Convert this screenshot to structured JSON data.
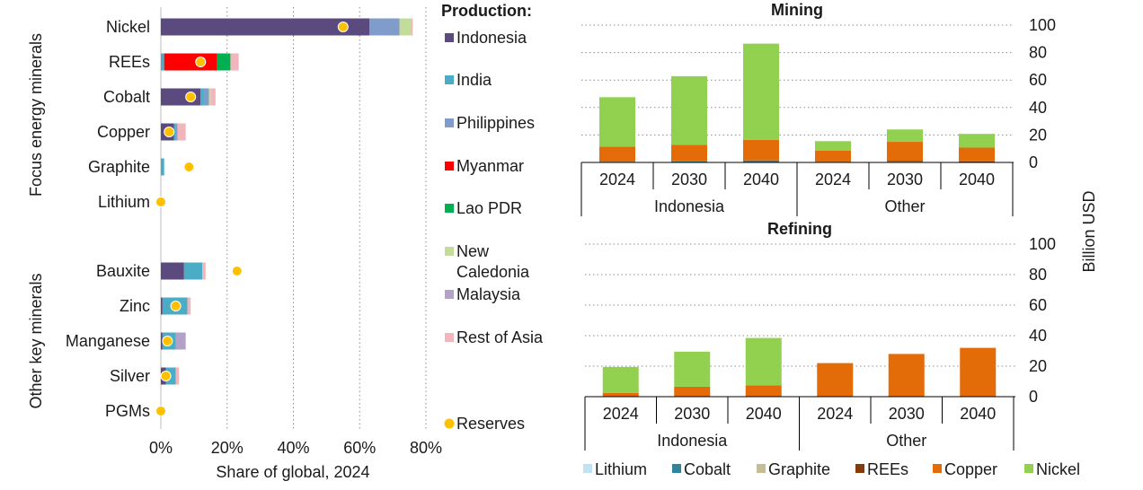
{
  "colors": {
    "Indonesia": "#5b4a7e",
    "India": "#4bacc6",
    "Philippines": "#7f9ccb",
    "Myanmar": "#ff0000",
    "Lao PDR": "#00b050",
    "New Caledonia": "#c4dc9a",
    "Malaysia": "#b3a2c7",
    "Rest of Asia": "#f0b6bc",
    "Reserves": "#ffc000",
    "Lithium": "#bfe3f2",
    "Cobalt": "#31849b",
    "Graphite": "#c4bd97",
    "REEs": "#843c0c",
    "Copper": "#e36c09",
    "Nickel": "#92d050"
  },
  "chart_data": [
    {
      "type": "bar",
      "orientation": "horizontal",
      "stacked": true,
      "group_labels": [
        "Focus energy minerals",
        "Other key minerals"
      ],
      "groups": [
        {
          "label": "Focus energy minerals",
          "categories": [
            "Nickel",
            "REEs",
            "Cobalt",
            "Copper",
            "Graphite",
            "Lithium"
          ]
        },
        {
          "label": "Other key minerals",
          "categories": [
            "Bauxite",
            "Zinc",
            "Manganese",
            "Silver",
            "PGMs"
          ]
        }
      ],
      "categories": [
        "Nickel",
        "REEs",
        "Cobalt",
        "Copper",
        "Graphite",
        "Lithium",
        "Bauxite",
        "Zinc",
        "Manganese",
        "Silver",
        "PGMs"
      ],
      "legend_title": "Production:",
      "series": [
        {
          "name": "Indonesia",
          "values": [
            63,
            0,
            12,
            4,
            0,
            0,
            7,
            0.5,
            0.5,
            1.5,
            0
          ]
        },
        {
          "name": "India",
          "values": [
            0,
            1,
            1,
            0.5,
            1,
            0,
            5.5,
            7.5,
            4,
            3,
            0
          ]
        },
        {
          "name": "Philippines",
          "values": [
            9,
            0,
            1.5,
            0.5,
            0,
            0,
            0,
            0,
            0,
            0,
            0
          ]
        },
        {
          "name": "Myanmar",
          "values": [
            0,
            16,
            0,
            0,
            0,
            0,
            0,
            0,
            0,
            0,
            0
          ]
        },
        {
          "name": "Lao PDR",
          "values": [
            0,
            4,
            0,
            0,
            0,
            0,
            0,
            0,
            0,
            0,
            0
          ]
        },
        {
          "name": "New Caledonia",
          "values": [
            3.5,
            0,
            0.5,
            0,
            0,
            0,
            0,
            0,
            0,
            0,
            0
          ]
        },
        {
          "name": "Malaysia",
          "values": [
            0,
            0,
            0,
            0,
            0,
            0,
            0,
            0,
            3,
            0,
            0
          ]
        },
        {
          "name": "Rest of Asia",
          "values": [
            0.5,
            2.5,
            1.5,
            2.5,
            0,
            0,
            1,
            1,
            0,
            1,
            0
          ]
        }
      ],
      "markers": {
        "name": "Reserves",
        "values": [
          55,
          12,
          9,
          2.5,
          8.5,
          0,
          23,
          4.5,
          2,
          1.5,
          0
        ]
      },
      "xlabel": "Share of global, 2024",
      "xlim": [
        0,
        80
      ],
      "xticks": [
        "0%",
        "20%",
        "40%",
        "60%",
        "80%"
      ],
      "grid": "vertical dotted",
      "legend_position": "right"
    },
    {
      "type": "bar",
      "stacked": true,
      "title": "Mining",
      "categories": [
        "2024",
        "2030",
        "2040",
        "2024",
        "2030",
        "2040"
      ],
      "groups": [
        "Indonesia",
        "Other"
      ],
      "series": [
        {
          "name": "Lithium",
          "values": [
            0,
            0,
            0,
            0,
            0,
            0
          ]
        },
        {
          "name": "Cobalt",
          "values": [
            0.5,
            0.8,
            1.5,
            0,
            0,
            0
          ]
        },
        {
          "name": "Graphite",
          "values": [
            0,
            0,
            0,
            0,
            0.5,
            0.3
          ]
        },
        {
          "name": "REEs",
          "values": [
            0,
            0,
            0,
            0.5,
            0.5,
            0.5
          ]
        },
        {
          "name": "Copper",
          "values": [
            11,
            12,
            15,
            8,
            14,
            10
          ]
        },
        {
          "name": "Nickel",
          "values": [
            36,
            50,
            70,
            7,
            9,
            10
          ]
        }
      ],
      "ylim": [
        0,
        100
      ],
      "yticks": [
        "0",
        "20",
        "40",
        "60",
        "80",
        "100"
      ],
      "grid": "horizontal dotted"
    },
    {
      "type": "bar",
      "stacked": true,
      "title": "Refining",
      "categories": [
        "2024",
        "2030",
        "2040",
        "2024",
        "2030",
        "2040"
      ],
      "groups": [
        "Indonesia",
        "Other"
      ],
      "series": [
        {
          "name": "Lithium",
          "values": [
            0,
            0,
            0,
            0,
            0,
            0
          ]
        },
        {
          "name": "Cobalt",
          "values": [
            0,
            0,
            0,
            0,
            0,
            0
          ]
        },
        {
          "name": "Graphite",
          "values": [
            0,
            0,
            0,
            0,
            0,
            0
          ]
        },
        {
          "name": "REEs",
          "values": [
            0.5,
            0.5,
            0.5,
            0,
            0,
            0
          ]
        },
        {
          "name": "Copper",
          "values": [
            2,
            6,
            7,
            22,
            28,
            32
          ]
        },
        {
          "name": "Nickel",
          "values": [
            17,
            23,
            31,
            0,
            0,
            0
          ]
        }
      ],
      "ylim": [
        0,
        100
      ],
      "yticks": [
        "0",
        "20",
        "40",
        "60",
        "80",
        "100"
      ],
      "grid": "horizontal dotted"
    }
  ],
  "shared_ylabel": "Billion USD",
  "bottom_legend": [
    "Lithium",
    "Cobalt",
    "Graphite",
    "REEs",
    "Copper",
    "Nickel"
  ]
}
